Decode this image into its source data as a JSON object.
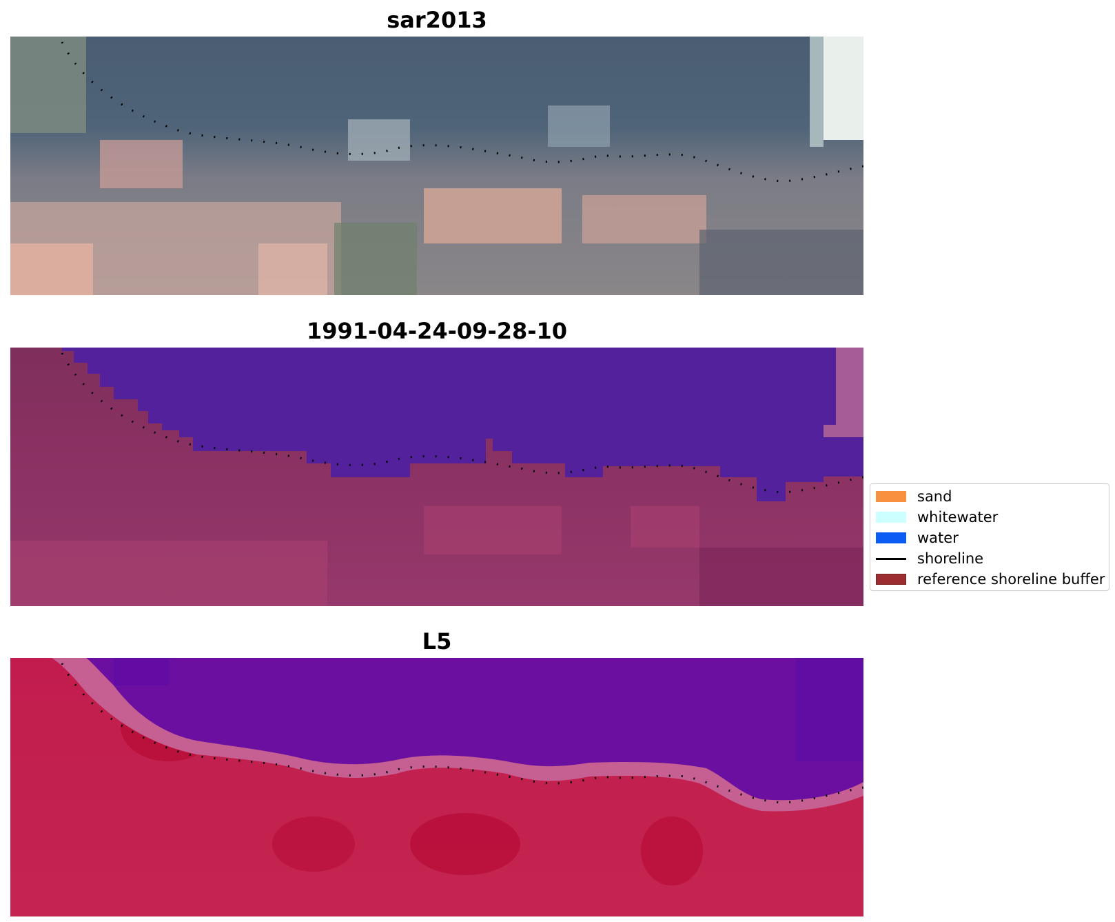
{
  "panels": [
    {
      "title": "sar2013"
    },
    {
      "title": "1991-04-24-09-28-10"
    },
    {
      "title": "L5"
    }
  ],
  "legend": {
    "items": [
      {
        "label": "sand",
        "color": "#f7913f",
        "kind": "patch"
      },
      {
        "label": "whitewater",
        "color": "#ccffff",
        "kind": "patch"
      },
      {
        "label": "water",
        "color": "#0b5cf5",
        "kind": "patch"
      },
      {
        "label": "shoreline",
        "color": "#000000",
        "kind": "line"
      },
      {
        "label": "reference shoreline buffer",
        "color": "#9b2d30",
        "kind": "patch"
      }
    ]
  }
}
